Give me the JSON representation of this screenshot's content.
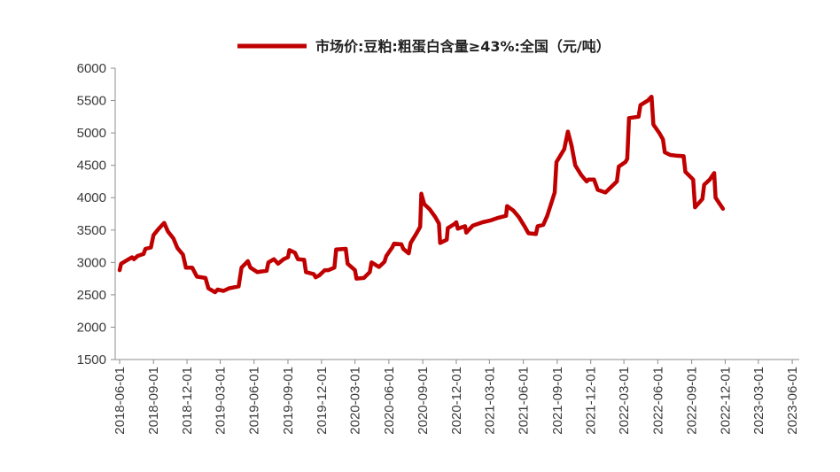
{
  "chart_data": {
    "type": "line",
    "title": "",
    "xlabel": "",
    "ylabel": "",
    "ylim": [
      1500,
      6000
    ],
    "yticks": [
      1500,
      2000,
      2500,
      3000,
      3500,
      4000,
      4500,
      5000,
      5500,
      6000
    ],
    "xticks": [
      "2018-06-01",
      "2018-09-01",
      "2018-12-01",
      "2019-03-01",
      "2019-06-01",
      "2019-09-01",
      "2019-12-01",
      "2020-03-01",
      "2020-06-01",
      "2020-09-01",
      "2020-12-01",
      "2021-03-01",
      "2021-06-01",
      "2021-09-01",
      "2021-12-01",
      "2022-03-01",
      "2022-06-01",
      "2022-09-01",
      "2022-12-01",
      "2023-03-01",
      "2023-06-01"
    ],
    "xrange": [
      "2018-05-20",
      "2023-06-20"
    ],
    "legend_position": "top-center",
    "grid": false,
    "series": [
      {
        "name": "市场价:豆粕:粗蛋白含量≥43%:全国（元/吨）",
        "color": "#c00000",
        "points": [
          [
            "2018-06-01",
            2880
          ],
          [
            "2018-06-05",
            2980
          ],
          [
            "2018-06-20",
            3030
          ],
          [
            "2018-07-05",
            3080
          ],
          [
            "2018-07-10",
            3050
          ],
          [
            "2018-07-20",
            3100
          ],
          [
            "2018-08-05",
            3130
          ],
          [
            "2018-08-10",
            3210
          ],
          [
            "2018-08-25",
            3230
          ],
          [
            "2018-09-01",
            3420
          ],
          [
            "2018-09-15",
            3520
          ],
          [
            "2018-09-30",
            3610
          ],
          [
            "2018-10-10",
            3480
          ],
          [
            "2018-10-25",
            3370
          ],
          [
            "2018-11-05",
            3220
          ],
          [
            "2018-11-20",
            3120
          ],
          [
            "2018-11-28",
            2920
          ],
          [
            "2018-12-15",
            2920
          ],
          [
            "2018-12-28",
            2780
          ],
          [
            "2019-01-20",
            2760
          ],
          [
            "2019-01-28",
            2600
          ],
          [
            "2019-02-15",
            2540
          ],
          [
            "2019-02-22",
            2580
          ],
          [
            "2019-03-10",
            2560
          ],
          [
            "2019-03-25",
            2600
          ],
          [
            "2019-04-20",
            2630
          ],
          [
            "2019-04-28",
            2920
          ],
          [
            "2019-05-15",
            3020
          ],
          [
            "2019-05-22",
            2920
          ],
          [
            "2019-06-10",
            2850
          ],
          [
            "2019-06-20",
            2860
          ],
          [
            "2019-07-05",
            2870
          ],
          [
            "2019-07-10",
            3000
          ],
          [
            "2019-07-25",
            3050
          ],
          [
            "2019-08-05",
            2980
          ],
          [
            "2019-08-20",
            3050
          ],
          [
            "2019-09-01",
            3080
          ],
          [
            "2019-09-05",
            3190
          ],
          [
            "2019-09-20",
            3150
          ],
          [
            "2019-09-28",
            3050
          ],
          [
            "2019-10-15",
            3040
          ],
          [
            "2019-10-20",
            2850
          ],
          [
            "2019-11-10",
            2820
          ],
          [
            "2019-11-15",
            2770
          ],
          [
            "2019-11-25",
            2800
          ],
          [
            "2019-12-10",
            2880
          ],
          [
            "2019-12-20",
            2880
          ],
          [
            "2020-01-05",
            2920
          ],
          [
            "2020-01-10",
            3200
          ],
          [
            "2020-02-05",
            3210
          ],
          [
            "2020-02-10",
            2980
          ],
          [
            "2020-03-01",
            2880
          ],
          [
            "2020-03-05",
            2750
          ],
          [
            "2020-03-25",
            2760
          ],
          [
            "2020-04-10",
            2850
          ],
          [
            "2020-04-15",
            3000
          ],
          [
            "2020-05-05",
            2930
          ],
          [
            "2020-05-20",
            3010
          ],
          [
            "2020-05-25",
            3100
          ],
          [
            "2020-06-10",
            3230
          ],
          [
            "2020-06-15",
            3290
          ],
          [
            "2020-07-05",
            3280
          ],
          [
            "2020-07-10",
            3210
          ],
          [
            "2020-07-25",
            3140
          ],
          [
            "2020-07-30",
            3300
          ],
          [
            "2020-08-15",
            3450
          ],
          [
            "2020-08-25",
            3550
          ],
          [
            "2020-08-28",
            4060
          ],
          [
            "2020-09-05",
            3900
          ],
          [
            "2020-09-20",
            3820
          ],
          [
            "2020-10-05",
            3700
          ],
          [
            "2020-10-15",
            3600
          ],
          [
            "2020-10-18",
            3300
          ],
          [
            "2020-11-05",
            3350
          ],
          [
            "2020-11-08",
            3530
          ],
          [
            "2020-11-25",
            3590
          ],
          [
            "2020-12-01",
            3620
          ],
          [
            "2020-12-05",
            3520
          ],
          [
            "2020-12-25",
            3560
          ],
          [
            "2020-12-28",
            3460
          ],
          [
            "2021-01-15",
            3570
          ],
          [
            "2021-02-10",
            3620
          ],
          [
            "2021-03-05",
            3650
          ],
          [
            "2021-03-25",
            3690
          ],
          [
            "2021-04-15",
            3720
          ],
          [
            "2021-04-18",
            3870
          ],
          [
            "2021-05-05",
            3800
          ],
          [
            "2021-05-20",
            3700
          ],
          [
            "2021-06-05",
            3550
          ],
          [
            "2021-06-15",
            3450
          ],
          [
            "2021-07-05",
            3440
          ],
          [
            "2021-07-10",
            3560
          ],
          [
            "2021-07-25",
            3580
          ],
          [
            "2021-08-05",
            3720
          ],
          [
            "2021-08-25",
            4080
          ],
          [
            "2021-08-30",
            4550
          ],
          [
            "2021-09-20",
            4750
          ],
          [
            "2021-09-30",
            5020
          ],
          [
            "2021-10-10",
            4800
          ],
          [
            "2021-10-20",
            4500
          ],
          [
            "2021-11-05",
            4350
          ],
          [
            "2021-11-20",
            4250
          ],
          [
            "2021-11-25",
            4280
          ],
          [
            "2021-12-10",
            4280
          ],
          [
            "2021-12-20",
            4120
          ],
          [
            "2022-01-10",
            4080
          ],
          [
            "2022-01-28",
            4180
          ],
          [
            "2022-02-10",
            4250
          ],
          [
            "2022-02-15",
            4480
          ],
          [
            "2022-03-05",
            4550
          ],
          [
            "2022-03-10",
            4600
          ],
          [
            "2022-03-15",
            5230
          ],
          [
            "2022-04-10",
            5250
          ],
          [
            "2022-04-15",
            5430
          ],
          [
            "2022-05-05",
            5500
          ],
          [
            "2022-05-15",
            5560
          ],
          [
            "2022-05-20",
            5130
          ],
          [
            "2022-06-05",
            5000
          ],
          [
            "2022-06-15",
            4900
          ],
          [
            "2022-06-20",
            4700
          ],
          [
            "2022-07-05",
            4660
          ],
          [
            "2022-07-20",
            4650
          ],
          [
            "2022-08-10",
            4640
          ],
          [
            "2022-08-15",
            4400
          ],
          [
            "2022-09-05",
            4280
          ],
          [
            "2022-09-10",
            3850
          ],
          [
            "2022-09-30",
            3980
          ],
          [
            "2022-10-05",
            4200
          ],
          [
            "2022-10-20",
            4280
          ],
          [
            "2022-11-01",
            4380
          ],
          [
            "2022-11-05",
            4000
          ],
          [
            "2022-11-25",
            3830
          ]
        ]
      }
    ]
  }
}
